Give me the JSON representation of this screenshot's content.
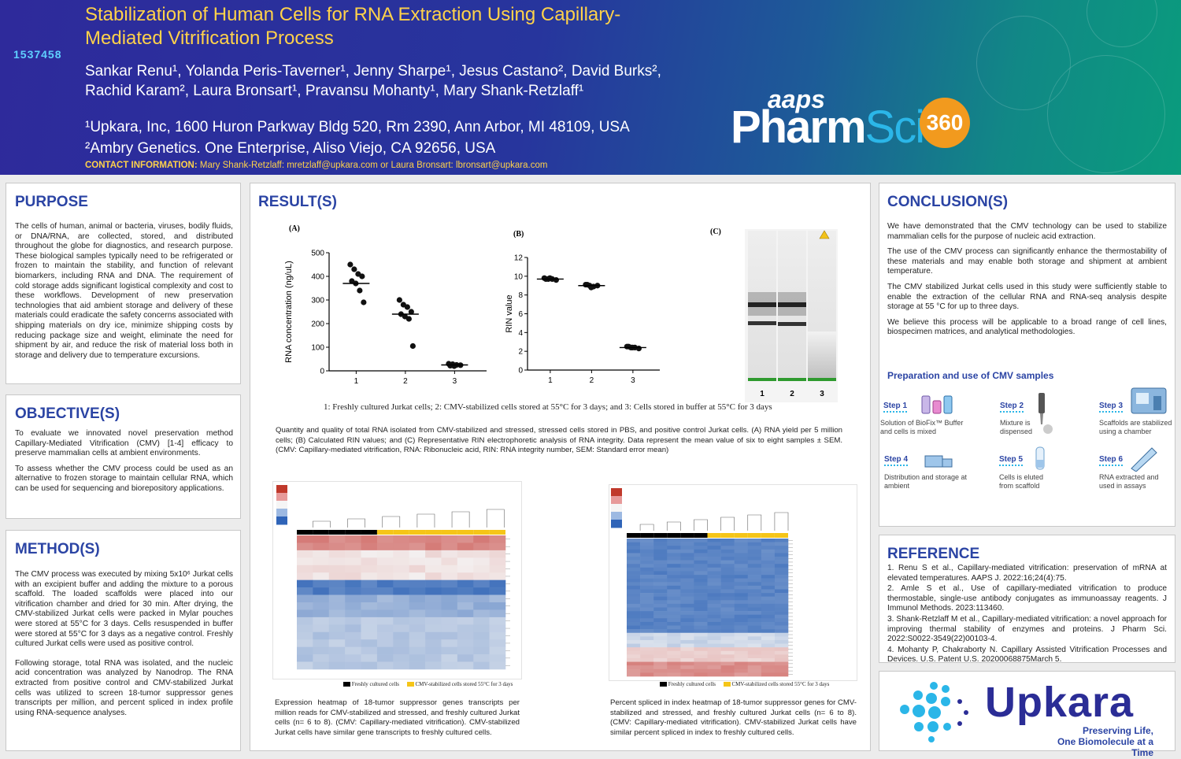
{
  "header": {
    "poster_id": "1537458",
    "title": "Stabilization of Human Cells for RNA Extraction Using Capillary-Mediated Vitrification Process",
    "authors_line1": "Sankar Renu¹, Yolanda Peris-Taverner¹, Jenny Sharpe¹, Jesus Castano², David Burks²,",
    "authors_line2": "Rachid Karam², Laura Bronsart¹, Pravansu Mohanty¹, Mary Shank-Retzlaff¹",
    "affiliation1": "¹Upkara, Inc, 1600 Huron Parkway Bldg 520, Rm 2390, Ann Arbor, MI 48109, USA",
    "affiliation2": "²Ambry Genetics. One Enterprise, Aliso Viejo, CA 92656, USA",
    "contact_label": "CONTACT INFORMATION:",
    "contact_text": "Mary Shank-Retzlaff: mretzlaff@upkara.com or Laura Bronsart: lbronsart@upkara.com",
    "logo_aaps": "aaps",
    "logo_pharm": "Pharm",
    "logo_sci": "Sci",
    "logo_360": "360"
  },
  "purpose": {
    "heading": "PURPOSE",
    "text": "The cells of human, animal or bacteria, viruses, bodily fluids, or DNA/RNA, are collected, stored, and distributed throughout the globe for diagnostics, and research purpose. These biological samples typically need to be refrigerated or frozen to maintain the stability, and function of relevant biomarkers, including RNA and DNA. The requirement of cold storage adds significant logistical complexity and cost to these workflows. Development of new preservation technologies that aid ambient storage and delivery of these materials could eradicate the safety concerns associated with shipping materials on dry ice, minimize shipping costs by reducing package size and weight, eliminate the need for shipment by air, and reduce the risk of material loss both in storage and delivery due to temperature excursions."
  },
  "objective": {
    "heading": "OBJECTIVE(S)",
    "p1": "To evaluate we innovated novel preservation method Capillary-Mediated Vitrification (CMV) [1-4] efficacy to preserve mammalian cells at ambient environments.",
    "p2": "To assess whether the CMV process could be used as an alternative to frozen storage to maintain cellular RNA, which can be used for sequencing and biorepository applications."
  },
  "method": {
    "heading": "METHOD(S)",
    "p1": "The CMV process was executed by mixing 5x10⁶ Jurkat cells with an excipient buffer and adding the mixture to a porous scaffold. The loaded scaffolds were placed into our vitrification chamber and dried for 30 min. After drying, the CMV-stabilized Jurkat cells were packed in Mylar pouches were stored at 55°C for 3 days. Cells resuspended in buffer were stored at 55°C for 3 days as a negative control. Freshly cultured Jurkat cells were used as positive control.",
    "p2": "Following storage, total RNA was isolated, and the nucleic acid concentration was analyzed by Nanodrop. The RNA extracted from positive control and CMV-stabilized Jurkat cells was utilized to screen 18-tumor suppressor genes transcripts per million, and percent spliced in index profile using RNA-sequence analyses."
  },
  "results": {
    "heading": "RESULT(S)",
    "panel_a_label": "(A)",
    "panel_b_label": "(B)",
    "panel_c_label": "(C)",
    "group_legend": "1: Freshly cultured Jurkat cells; 2: CMV-stabilized cells stored at 55°C for 3 days; and 3: Cells stored in buffer at 55°C for 3 days",
    "caption1": "Quantity and quality of total RNA isolated from CMV-stabilized and stressed, stressed cells stored in PBS, and positive control Jurkat cells. (A) RNA yield per 5 million cells; (B) Calculated RIN values; and (C) Representative RIN electrophoretic analysis of RNA integrity. Data represent the mean value of six to eight samples ± SEM. (CMV: Capillary-mediated vitrification, RNA: Ribonucleic acid, RIN: RNA integrity number, SEM: Standard error mean)",
    "gel_lanes": [
      "1",
      "2",
      "3"
    ],
    "heat1_legend_a": "Freshly cultured cells",
    "heat1_legend_b": "CMV-stabilized cells stored 55°C for 3 days",
    "heat2_legend_a": "Freshly cultured cells",
    "heat2_legend_b": "CMV-stabilized cells stored 55°C for 3 days",
    "heat1_caption": "Expression heatmap of 18-tumor suppressor genes transcripts per million reads for CMV-stabilized and stressed, and freshly cultured Jurkat cells (n= 6 to 8). (CMV: Capillary-mediated vitrification). CMV-stabilized Jurkat cells have similar gene transcripts to freshly cultured cells.",
    "heat2_caption": "Percent spliced in index heatmap of 18-tumor suppressor genes for CMV-stabilized and stressed, and freshly cultured Jurkat cells (n= 6 to 8). (CMV: Capillary-mediated vitrification). CMV-stabilized Jurkat cells have similar percent spliced in index to freshly cultured cells."
  },
  "chart_data": [
    {
      "type": "scatter",
      "title": "(A)",
      "xlabel": "",
      "ylabel": "RNA concentration (ng/uL)",
      "categories": [
        "1",
        "2",
        "3"
      ],
      "ylim": [
        0,
        500
      ],
      "yticks": [
        0,
        100,
        200,
        300,
        400,
        500
      ],
      "means": [
        370,
        240,
        25
      ],
      "points": [
        [
          450,
          430,
          410,
          400,
          380,
          370,
          340,
          290
        ],
        [
          300,
          280,
          270,
          250,
          240,
          230,
          220,
          105
        ],
        [
          30,
          28,
          25,
          24,
          22,
          20
        ]
      ]
    },
    {
      "type": "scatter",
      "title": "(B)",
      "xlabel": "",
      "ylabel": "RIN value",
      "categories": [
        "1",
        "2",
        "3"
      ],
      "ylim": [
        0,
        12
      ],
      "yticks": [
        0,
        2,
        4,
        6,
        8,
        10,
        12
      ],
      "means": [
        9.7,
        9.0,
        2.4
      ],
      "points": [
        [
          9.8,
          9.7,
          9.7,
          9.6,
          9.7,
          9.8
        ],
        [
          9.1,
          9.0,
          8.9,
          9.0,
          9.1,
          8.8
        ],
        [
          2.5,
          2.4,
          2.4,
          2.3,
          2.5,
          2.4
        ]
      ]
    }
  ],
  "conclusion": {
    "heading": "CONCLUSION(S)",
    "p1": "We have demonstrated that the CMV technology can be used to stabilize mammalian cells for the purpose of nucleic acid extraction.",
    "p2": "The use of the CMV process can significantly enhance the thermostability of these materials and may enable both storage and shipment at ambient temperature.",
    "p3": "The CMV stabilized Jurkat cells used in this study were sufficiently stable to enable the extraction of the cellular RNA and RNA-seq analysis despite storage at 55 °C for up to three days.",
    "p4": "We believe this process will be applicable to a broad range of cell lines, biospecimen matrices, and analytical methodologies.",
    "steps_title": "Preparation and use of CMV samples",
    "steps": [
      {
        "label": "Step 1",
        "text": "Solution of BioFix™ Buffer and cells is mixed"
      },
      {
        "label": "Step 2",
        "text": "Mixture is dispensed"
      },
      {
        "label": "Step 3",
        "text": "Scaffolds are stabilized using a chamber"
      },
      {
        "label": "Step 4",
        "text": "Distribution and storage at ambient"
      },
      {
        "label": "Step 5",
        "text": "Cells is eluted from scaffold"
      },
      {
        "label": "Step 6",
        "text": "RNA extracted and used in assays"
      }
    ]
  },
  "reference": {
    "heading": "REFERENCE",
    "r1": "1. Renu S et al., Capillary-mediated vitrification: preservation of mRNA at elevated temperatures. AAPS J. 2022:16;24(4):75.",
    "r2": "2. Amle S et al., Use of capillary-mediated vitrification to produce thermostable, single-use antibody conjugates as immunoassay reagents. J Immunol Methods. 2023:113460.",
    "r3": "3. Shank-Retzlaff M et al., Capillary-mediated vitrification: a novel approach for improving thermal stability of enzymes and proteins. J Pharm Sci. 2022:S0022-3549(22)00103-4.",
    "r4": "4. Mohanty P, Chakraborty N. Capillary Assisted Vitrification Processes and Devices. U.S. Patent U.S. 20200068875March 5."
  },
  "logo": {
    "name": "Upkara",
    "tag1": "Preserving Life,",
    "tag2": "One Biomolecule at a Time"
  },
  "colors": {
    "heading": "#2b44a4",
    "title": "#ffd24a",
    "accent": "#2bb6e8",
    "orange": "#f29a1e"
  }
}
